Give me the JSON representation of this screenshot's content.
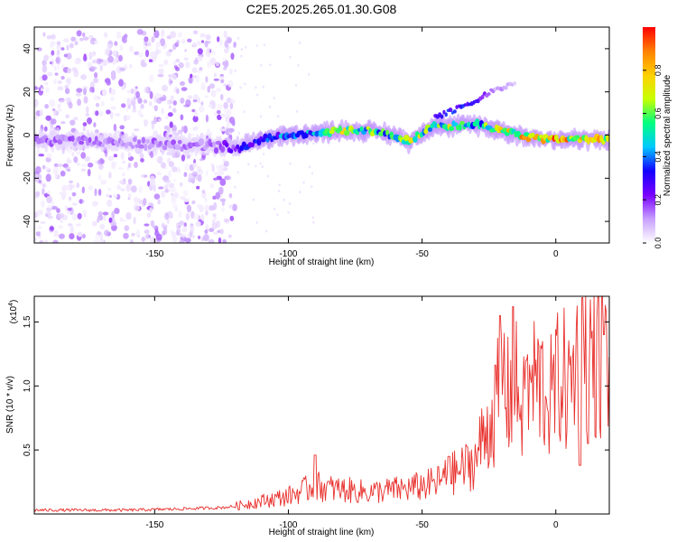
{
  "figure": {
    "title": "C2E5.2025.265.01.30.G08"
  },
  "chart_data": [
    {
      "type": "heatmap",
      "title": "C2E5.2025.265.01.30.G08",
      "xlabel": "Height of straight line (km)",
      "ylabel": "Frequency (Hz)",
      "xlim": [
        -195,
        20
      ],
      "ylim": [
        -50,
        50
      ],
      "x_ticks": [
        -150,
        -100,
        -50,
        0
      ],
      "y_ticks": [
        -40,
        -20,
        0,
        20,
        40
      ],
      "grid": false,
      "colorbar": {
        "label": "Normalized spectral amplitude",
        "range": [
          0,
          1
        ],
        "ticks": [
          0.0,
          0.2,
          0.4,
          0.6,
          0.8
        ],
        "colormap": [
          "#ffffff",
          "#c8a0ff",
          "#7a00ff",
          "#1400ff",
          "#00c8ff",
          "#00ff80",
          "#c8ff00",
          "#ffd000",
          "#ff8000",
          "#ff0000"
        ]
      },
      "noise_region": {
        "x_range": [
          -195,
          -120
        ],
        "y_range": [
          -50,
          48
        ],
        "amplitude_range": [
          0.02,
          0.18
        ]
      },
      "ridge": [
        {
          "x": -195,
          "f": -2,
          "amplitude": 0.18
        },
        {
          "x": -170,
          "f": -3,
          "amplitude": 0.15
        },
        {
          "x": -150,
          "f": -4,
          "amplitude": 0.16
        },
        {
          "x": -130,
          "f": -5,
          "amplitude": 0.15
        },
        {
          "x": -118,
          "f": -6,
          "amplitude": 0.3
        },
        {
          "x": -110,
          "f": -2,
          "amplitude": 0.42
        },
        {
          "x": -100,
          "f": 0,
          "amplitude": 0.45
        },
        {
          "x": -90,
          "f": 1,
          "amplitude": 0.52
        },
        {
          "x": -80,
          "f": 2,
          "amplitude": 0.72
        },
        {
          "x": -70,
          "f": 2,
          "amplitude": 0.65
        },
        {
          "x": -60,
          "f": 0,
          "amplitude": 0.55
        },
        {
          "x": -55,
          "f": -3,
          "amplitude": 0.75
        },
        {
          "x": -45,
          "f": 5,
          "amplitude": 0.6
        },
        {
          "x": -40,
          "f": 4,
          "amplitude": 0.7
        },
        {
          "x": -30,
          "f": 5,
          "amplitude": 0.55
        },
        {
          "x": -20,
          "f": 2,
          "amplitude": 0.78
        },
        {
          "x": -10,
          "f": -1,
          "amplitude": 0.85
        },
        {
          "x": 0,
          "f": -2,
          "amplitude": 0.9
        },
        {
          "x": 10,
          "f": -2,
          "amplitude": 0.85
        },
        {
          "x": 20,
          "f": -2,
          "amplitude": 0.8
        }
      ],
      "branch": [
        {
          "x": -45,
          "f": 8,
          "amplitude": 0.3
        },
        {
          "x": -35,
          "f": 13,
          "amplitude": 0.35
        },
        {
          "x": -30,
          "f": 16,
          "amplitude": 0.3
        },
        {
          "x": -25,
          "f": 20,
          "amplitude": 0.15
        },
        {
          "x": -15,
          "f": 24,
          "amplitude": 0.08
        }
      ]
    },
    {
      "type": "line",
      "xlabel": "Height of straight line (km)",
      "ylabel": "SNR (10 * v/v)",
      "y_scale_label": "(x10",
      "y_scale_exponent": "4",
      "y_scale_close": ")",
      "xlim": [
        -195,
        20
      ],
      "ylim": [
        0,
        1.7
      ],
      "x_ticks": [
        -150,
        -100,
        -50,
        0
      ],
      "y_ticks": [
        0.5,
        1.0,
        1.5
      ],
      "y_tick_labels": [
        "0.5",
        "1.0",
        "1.5"
      ],
      "grid": false,
      "series": [
        {
          "color": "#e8302c",
          "x": [
            -195,
            -180,
            -160,
            -140,
            -125,
            -120,
            -115,
            -110,
            -105,
            -100,
            -95,
            -90,
            -85,
            -80,
            -75,
            -70,
            -65,
            -60,
            -55,
            -50,
            -45,
            -40,
            -35,
            -30,
            -28,
            -25,
            -22,
            -20,
            -18,
            -15,
            -12,
            -10,
            -8,
            -5,
            -2,
            0,
            2,
            5,
            8,
            10,
            12,
            15,
            18,
            20
          ],
          "y": [
            0.03,
            0.03,
            0.03,
            0.04,
            0.05,
            0.06,
            0.08,
            0.1,
            0.12,
            0.14,
            0.18,
            0.22,
            0.2,
            0.19,
            0.18,
            0.17,
            0.18,
            0.19,
            0.2,
            0.22,
            0.24,
            0.3,
            0.35,
            0.42,
            0.55,
            0.7,
            0.85,
            1.15,
            0.9,
            1.0,
            0.8,
            0.95,
            1.05,
            1.0,
            0.9,
            1.0,
            1.1,
            0.95,
            1.25,
            1.5,
            1.35,
            1.25,
            1.2,
            1.15
          ],
          "peaks": [
            {
              "x": -90,
              "y": 0.46
            },
            {
              "x": -40,
              "y": 0.45
            },
            {
              "x": -21,
              "y": 1.55
            },
            {
              "x": -16,
              "y": 1.62
            },
            {
              "x": -11,
              "y": 1.2
            },
            {
              "x": 10,
              "y": 1.69
            },
            {
              "x": 18,
              "y": 1.4
            }
          ],
          "dips": [
            {
              "x": 9,
              "y": 0.38
            },
            {
              "x": 12,
              "y": 0.55
            }
          ]
        }
      ]
    }
  ]
}
